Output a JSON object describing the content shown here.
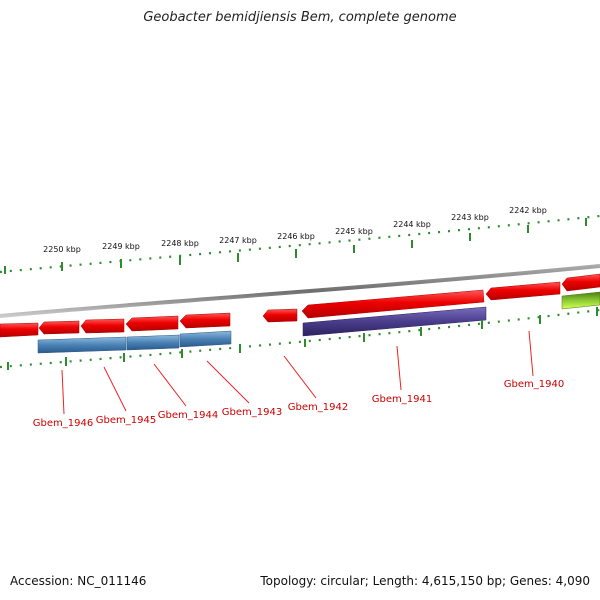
{
  "title": "Geobacter bemidjiensis Bem, complete genome",
  "footer": {
    "accession": "Accession: NC_011146",
    "info": "Topology: circular; Length: 4,615,150 bp; Genes: 4,090"
  },
  "ticks": [
    "2250 kbp",
    "2249 kbp",
    "2248 kbp",
    "2247 kbp",
    "2246 kbp",
    "2245 kbp",
    "2244 kbp",
    "2243 kbp",
    "2242 kbp"
  ],
  "gene_labels": [
    "Gbem_1946",
    "Gbem_1945",
    "Gbem_1944",
    "Gbem_1943",
    "Gbem_1942",
    "Gbem_1941",
    "Gbem_1940"
  ],
  "colors": {
    "backbone": "#7a7a7a",
    "cds": "#e60000",
    "gene_blue": "#4a82b6",
    "gene_purple": "#4a3d8c",
    "gene_green": "#7fbf2a",
    "label": "#cc0000",
    "tick": "#2e8b2e"
  }
}
